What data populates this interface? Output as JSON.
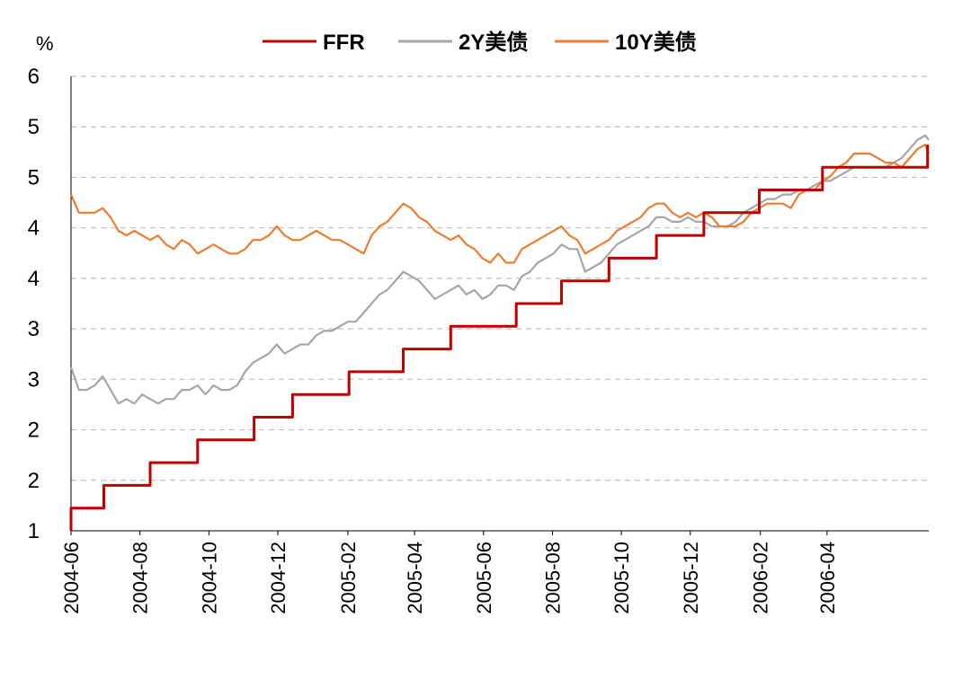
{
  "chart_data": {
    "type": "line",
    "unit_label": "%",
    "y_tick_labels": [
      "1",
      "2",
      "2",
      "3",
      "3",
      "4",
      "4",
      "5",
      "5",
      "6"
    ],
    "ylim": [
      1,
      6
    ],
    "x_tick_labels": [
      "2004-06",
      "2004-08",
      "2004-10",
      "2004-12",
      "2005-02",
      "2005-04",
      "2005-06",
      "2005-08",
      "2005-10",
      "2005-12",
      "2006-02",
      "2006-04"
    ],
    "xlim": [
      "2004-06-01",
      "2006-06-30"
    ],
    "grid": "horizontal dashed",
    "legend_position": "top",
    "series": [
      {
        "name": "FFR",
        "color": "#c00000",
        "style": "step",
        "points": [
          [
            "2004-06-01",
            1.0
          ],
          [
            "2004-06-01",
            1.25
          ],
          [
            "2004-06-30",
            1.25
          ],
          [
            "2004-06-30",
            1.5
          ],
          [
            "2004-08-10",
            1.5
          ],
          [
            "2004-08-10",
            1.75
          ],
          [
            "2004-09-21",
            1.75
          ],
          [
            "2004-09-21",
            2.0
          ],
          [
            "2004-11-10",
            2.0
          ],
          [
            "2004-11-10",
            2.25
          ],
          [
            "2004-12-14",
            2.25
          ],
          [
            "2004-12-14",
            2.5
          ],
          [
            "2005-02-02",
            2.5
          ],
          [
            "2005-02-02",
            2.75
          ],
          [
            "2005-03-22",
            2.75
          ],
          [
            "2005-03-22",
            3.0
          ],
          [
            "2005-05-03",
            3.0
          ],
          [
            "2005-05-03",
            3.25
          ],
          [
            "2005-06-30",
            3.25
          ],
          [
            "2005-06-30",
            3.5
          ],
          [
            "2005-08-09",
            3.5
          ],
          [
            "2005-08-09",
            3.75
          ],
          [
            "2005-09-20",
            3.75
          ],
          [
            "2005-09-20",
            4.0
          ],
          [
            "2005-11-01",
            4.0
          ],
          [
            "2005-11-01",
            4.25
          ],
          [
            "2005-12-13",
            4.25
          ],
          [
            "2005-12-13",
            4.5
          ],
          [
            "2006-01-31",
            4.5
          ],
          [
            "2006-01-31",
            4.75
          ],
          [
            "2006-03-28",
            4.75
          ],
          [
            "2006-03-28",
            5.0
          ],
          [
            "2006-05-10",
            5.0
          ],
          [
            "2006-05-10",
            5.0
          ],
          [
            "2006-06-29",
            5.0
          ],
          [
            "2006-06-29",
            5.25
          ]
        ]
      },
      {
        "name": "2Y美债",
        "color": "#a6a6a6",
        "style": "line",
        "points": [
          [
            "2004-06-01",
            2.8
          ],
          [
            "2004-06-08",
            2.55
          ],
          [
            "2004-06-15",
            2.55
          ],
          [
            "2004-06-22",
            2.6
          ],
          [
            "2004-06-29",
            2.7
          ],
          [
            "2004-07-06",
            2.55
          ],
          [
            "2004-07-13",
            2.4
          ],
          [
            "2004-07-20",
            2.45
          ],
          [
            "2004-07-27",
            2.4
          ],
          [
            "2004-08-03",
            2.5
          ],
          [
            "2004-08-10",
            2.45
          ],
          [
            "2004-08-17",
            2.4
          ],
          [
            "2004-08-24",
            2.45
          ],
          [
            "2004-08-31",
            2.45
          ],
          [
            "2004-09-07",
            2.55
          ],
          [
            "2004-09-14",
            2.55
          ],
          [
            "2004-09-21",
            2.6
          ],
          [
            "2004-09-28",
            2.5
          ],
          [
            "2004-10-05",
            2.6
          ],
          [
            "2004-10-12",
            2.55
          ],
          [
            "2004-10-19",
            2.55
          ],
          [
            "2004-10-26",
            2.6
          ],
          [
            "2004-11-02",
            2.75
          ],
          [
            "2004-11-09",
            2.85
          ],
          [
            "2004-11-16",
            2.9
          ],
          [
            "2004-11-23",
            2.95
          ],
          [
            "2004-11-30",
            3.05
          ],
          [
            "2004-12-07",
            2.95
          ],
          [
            "2004-12-14",
            3.0
          ],
          [
            "2004-12-21",
            3.05
          ],
          [
            "2004-12-28",
            3.05
          ],
          [
            "2005-01-04",
            3.15
          ],
          [
            "2005-01-11",
            3.2
          ],
          [
            "2005-01-18",
            3.2
          ],
          [
            "2005-01-25",
            3.25
          ],
          [
            "2005-02-01",
            3.3
          ],
          [
            "2005-02-08",
            3.3
          ],
          [
            "2005-02-15",
            3.4
          ],
          [
            "2005-02-22",
            3.5
          ],
          [
            "2005-03-01",
            3.6
          ],
          [
            "2005-03-08",
            3.65
          ],
          [
            "2005-03-15",
            3.75
          ],
          [
            "2005-03-22",
            3.85
          ],
          [
            "2005-03-29",
            3.8
          ],
          [
            "2005-04-05",
            3.75
          ],
          [
            "2005-04-12",
            3.65
          ],
          [
            "2005-04-19",
            3.55
          ],
          [
            "2005-04-26",
            3.6
          ],
          [
            "2005-05-03",
            3.65
          ],
          [
            "2005-05-10",
            3.7
          ],
          [
            "2005-05-17",
            3.6
          ],
          [
            "2005-05-24",
            3.65
          ],
          [
            "2005-05-31",
            3.55
          ],
          [
            "2005-06-07",
            3.6
          ],
          [
            "2005-06-14",
            3.7
          ],
          [
            "2005-06-21",
            3.7
          ],
          [
            "2005-06-28",
            3.65
          ],
          [
            "2005-07-05",
            3.8
          ],
          [
            "2005-07-12",
            3.85
          ],
          [
            "2005-07-19",
            3.95
          ],
          [
            "2005-07-26",
            4.0
          ],
          [
            "2005-08-02",
            4.05
          ],
          [
            "2005-08-09",
            4.15
          ],
          [
            "2005-08-16",
            4.1
          ],
          [
            "2005-08-23",
            4.1
          ],
          [
            "2005-08-30",
            3.85
          ],
          [
            "2005-09-06",
            3.9
          ],
          [
            "2005-09-13",
            3.95
          ],
          [
            "2005-09-20",
            4.05
          ],
          [
            "2005-09-27",
            4.15
          ],
          [
            "2005-10-04",
            4.2
          ],
          [
            "2005-10-11",
            4.25
          ],
          [
            "2005-10-18",
            4.3
          ],
          [
            "2005-10-25",
            4.35
          ],
          [
            "2005-11-01",
            4.45
          ],
          [
            "2005-11-08",
            4.45
          ],
          [
            "2005-11-15",
            4.4
          ],
          [
            "2005-11-22",
            4.4
          ],
          [
            "2005-11-29",
            4.45
          ],
          [
            "2005-12-06",
            4.4
          ],
          [
            "2005-12-13",
            4.4
          ],
          [
            "2005-12-20",
            4.35
          ],
          [
            "2005-12-27",
            4.35
          ],
          [
            "2006-01-03",
            4.35
          ],
          [
            "2006-01-10",
            4.4
          ],
          [
            "2006-01-17",
            4.5
          ],
          [
            "2006-01-24",
            4.55
          ],
          [
            "2006-01-31",
            4.6
          ],
          [
            "2006-02-07",
            4.65
          ],
          [
            "2006-02-14",
            4.65
          ],
          [
            "2006-02-21",
            4.7
          ],
          [
            "2006-02-28",
            4.7
          ],
          [
            "2006-03-07",
            4.75
          ],
          [
            "2006-03-14",
            4.75
          ],
          [
            "2006-03-21",
            4.8
          ],
          [
            "2006-03-28",
            4.85
          ],
          [
            "2006-04-04",
            4.85
          ],
          [
            "2006-04-11",
            4.9
          ],
          [
            "2006-04-18",
            4.95
          ],
          [
            "2006-04-25",
            5.0
          ],
          [
            "2006-05-02",
            5.0
          ],
          [
            "2006-05-09",
            5.0
          ],
          [
            "2006-05-16",
            5.0
          ],
          [
            "2006-05-23",
            5.0
          ],
          [
            "2006-05-30",
            5.05
          ],
          [
            "2006-06-06",
            5.1
          ],
          [
            "2006-06-13",
            5.2
          ],
          [
            "2006-06-20",
            5.3
          ],
          [
            "2006-06-27",
            5.35
          ],
          [
            "2006-06-30",
            5.3
          ]
        ]
      },
      {
        "name": "10Y美债",
        "color": "#ed7d31",
        "style": "line",
        "points": [
          [
            "2004-06-01",
            4.7
          ],
          [
            "2004-06-08",
            4.5
          ],
          [
            "2004-06-15",
            4.5
          ],
          [
            "2004-06-22",
            4.5
          ],
          [
            "2004-06-29",
            4.55
          ],
          [
            "2004-07-06",
            4.45
          ],
          [
            "2004-07-13",
            4.3
          ],
          [
            "2004-07-20",
            4.25
          ],
          [
            "2004-07-27",
            4.3
          ],
          [
            "2004-08-03",
            4.25
          ],
          [
            "2004-08-10",
            4.2
          ],
          [
            "2004-08-17",
            4.25
          ],
          [
            "2004-08-24",
            4.15
          ],
          [
            "2004-08-31",
            4.1
          ],
          [
            "2004-09-07",
            4.2
          ],
          [
            "2004-09-14",
            4.15
          ],
          [
            "2004-09-21",
            4.05
          ],
          [
            "2004-09-28",
            4.1
          ],
          [
            "2004-10-05",
            4.15
          ],
          [
            "2004-10-12",
            4.1
          ],
          [
            "2004-10-19",
            4.05
          ],
          [
            "2004-10-26",
            4.05
          ],
          [
            "2004-11-02",
            4.1
          ],
          [
            "2004-11-09",
            4.2
          ],
          [
            "2004-11-16",
            4.2
          ],
          [
            "2004-11-23",
            4.25
          ],
          [
            "2004-11-30",
            4.35
          ],
          [
            "2004-12-07",
            4.25
          ],
          [
            "2004-12-14",
            4.2
          ],
          [
            "2004-12-21",
            4.2
          ],
          [
            "2004-12-28",
            4.25
          ],
          [
            "2005-01-04",
            4.3
          ],
          [
            "2005-01-11",
            4.25
          ],
          [
            "2005-01-18",
            4.2
          ],
          [
            "2005-01-25",
            4.2
          ],
          [
            "2005-02-01",
            4.15
          ],
          [
            "2005-02-08",
            4.1
          ],
          [
            "2005-02-15",
            4.05
          ],
          [
            "2005-02-22",
            4.25
          ],
          [
            "2005-03-01",
            4.35
          ],
          [
            "2005-03-08",
            4.4
          ],
          [
            "2005-03-15",
            4.5
          ],
          [
            "2005-03-22",
            4.6
          ],
          [
            "2005-03-29",
            4.55
          ],
          [
            "2005-04-05",
            4.45
          ],
          [
            "2005-04-12",
            4.4
          ],
          [
            "2005-04-19",
            4.3
          ],
          [
            "2005-04-26",
            4.25
          ],
          [
            "2005-05-03",
            4.2
          ],
          [
            "2005-05-10",
            4.25
          ],
          [
            "2005-05-17",
            4.15
          ],
          [
            "2005-05-24",
            4.1
          ],
          [
            "2005-05-31",
            4.0
          ],
          [
            "2005-06-07",
            3.95
          ],
          [
            "2005-06-14",
            4.05
          ],
          [
            "2005-06-21",
            3.95
          ],
          [
            "2005-06-28",
            3.95
          ],
          [
            "2005-07-05",
            4.1
          ],
          [
            "2005-07-12",
            4.15
          ],
          [
            "2005-07-19",
            4.2
          ],
          [
            "2005-07-26",
            4.25
          ],
          [
            "2005-08-02",
            4.3
          ],
          [
            "2005-08-09",
            4.35
          ],
          [
            "2005-08-16",
            4.25
          ],
          [
            "2005-08-23",
            4.2
          ],
          [
            "2005-08-30",
            4.05
          ],
          [
            "2005-09-06",
            4.1
          ],
          [
            "2005-09-13",
            4.15
          ],
          [
            "2005-09-20",
            4.2
          ],
          [
            "2005-09-27",
            4.3
          ],
          [
            "2005-10-04",
            4.35
          ],
          [
            "2005-10-11",
            4.4
          ],
          [
            "2005-10-18",
            4.45
          ],
          [
            "2005-10-25",
            4.55
          ],
          [
            "2005-11-01",
            4.6
          ],
          [
            "2005-11-08",
            4.6
          ],
          [
            "2005-11-15",
            4.5
          ],
          [
            "2005-11-22",
            4.45
          ],
          [
            "2005-11-29",
            4.5
          ],
          [
            "2005-12-06",
            4.45
          ],
          [
            "2005-12-13",
            4.5
          ],
          [
            "2005-12-20",
            4.45
          ],
          [
            "2005-12-27",
            4.35
          ],
          [
            "2006-01-03",
            4.35
          ],
          [
            "2006-01-10",
            4.35
          ],
          [
            "2006-01-17",
            4.4
          ],
          [
            "2006-01-24",
            4.5
          ],
          [
            "2006-01-31",
            4.55
          ],
          [
            "2006-02-07",
            4.6
          ],
          [
            "2006-02-14",
            4.6
          ],
          [
            "2006-02-21",
            4.6
          ],
          [
            "2006-02-28",
            4.55
          ],
          [
            "2006-03-07",
            4.7
          ],
          [
            "2006-03-14",
            4.75
          ],
          [
            "2006-03-21",
            4.75
          ],
          [
            "2006-03-28",
            4.85
          ],
          [
            "2006-04-04",
            4.9
          ],
          [
            "2006-04-11",
            5.0
          ],
          [
            "2006-04-18",
            5.05
          ],
          [
            "2006-04-25",
            5.15
          ],
          [
            "2006-05-02",
            5.15
          ],
          [
            "2006-05-09",
            5.15
          ],
          [
            "2006-05-16",
            5.1
          ],
          [
            "2006-05-23",
            5.05
          ],
          [
            "2006-05-30",
            5.05
          ],
          [
            "2006-06-06",
            5.0
          ],
          [
            "2006-06-13",
            5.1
          ],
          [
            "2006-06-20",
            5.2
          ],
          [
            "2006-06-27",
            5.25
          ],
          [
            "2006-06-30",
            5.15
          ]
        ]
      }
    ]
  }
}
